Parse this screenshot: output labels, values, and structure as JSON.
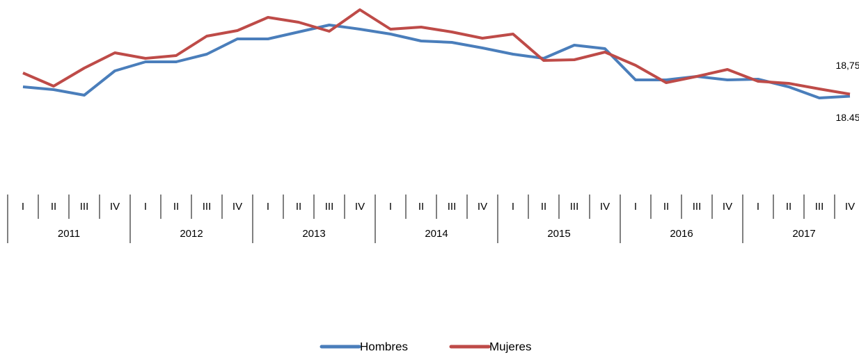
{
  "chart_data": {
    "type": "line",
    "categories": [
      "I",
      "II",
      "III",
      "IV",
      "I",
      "II",
      "III",
      "IV",
      "I",
      "II",
      "III",
      "IV",
      "I",
      "II",
      "III",
      "IV",
      "I",
      "II",
      "III",
      "IV",
      "I",
      "II",
      "III",
      "IV",
      "I",
      "II",
      "III",
      "IV"
    ],
    "groups": [
      "2011",
      "2012",
      "2013",
      "2014",
      "2015",
      "2016",
      "2017"
    ],
    "ylim": [
      4.3,
      32.3
    ],
    "legend": "bottom",
    "series": [
      {
        "name": "Hombres",
        "color": "#4a7ebb",
        "values": [
          19.8,
          19.4,
          18.6,
          22.1,
          23.4,
          23.4,
          24.5,
          26.7,
          26.7,
          27.7,
          28.7,
          28.1,
          27.4,
          26.4,
          26.2,
          25.4,
          24.5,
          23.9,
          25.8,
          25.3,
          20.8,
          20.8,
          21.3,
          20.8,
          20.9,
          19.8,
          18.2,
          18.45
        ],
        "value_labels": [
          null,
          null,
          null,
          null,
          null,
          null,
          null,
          null,
          null,
          null,
          null,
          null,
          null,
          null,
          null,
          null,
          null,
          null,
          null,
          null,
          null,
          null,
          null,
          null,
          null,
          null,
          null,
          "18.45"
        ]
      },
      {
        "name": "Mujeres",
        "color": "#be4b48",
        "values": [
          21.8,
          19.9,
          22.5,
          24.7,
          23.9,
          24.3,
          27.1,
          27.9,
          29.8,
          29.1,
          27.8,
          30.9,
          28.1,
          28.4,
          27.7,
          26.8,
          27.4,
          23.6,
          23.7,
          24.8,
          22.9,
          20.4,
          21.3,
          22.3,
          20.6,
          20.3,
          19.5,
          18.75
        ],
        "value_labels": [
          null,
          null,
          null,
          null,
          null,
          null,
          null,
          null,
          null,
          null,
          null,
          null,
          null,
          null,
          null,
          null,
          null,
          null,
          null,
          null,
          null,
          null,
          null,
          null,
          null,
          null,
          null,
          "18,75"
        ]
      }
    ]
  }
}
